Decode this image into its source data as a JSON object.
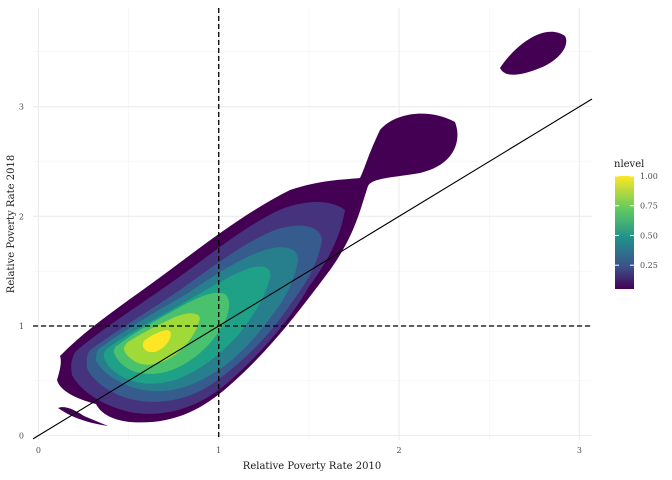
{
  "chart_data": {
    "type": "density contour",
    "xlabel": "Relative Poverty Rate 2010",
    "ylabel": "Relative Poverty Rate 2018",
    "xlim": [
      -0.03,
      3.07
    ],
    "ylim": [
      -0.04,
      3.9
    ],
    "x_ticks": [
      0,
      1,
      2,
      3
    ],
    "y_ticks": [
      0,
      1,
      2,
      3
    ],
    "grid": true,
    "reference_lines": {
      "vertical_dashed_x": 1,
      "horizontal_dashed_y": 1,
      "diagonal_identity": "y = x"
    },
    "legend": {
      "title": "nlevel",
      "position": "right",
      "colorscale": "viridis",
      "ticks": [
        {
          "value": 1.0,
          "label": "1.00"
        },
        {
          "value": 0.75,
          "label": "0.75"
        },
        {
          "value": 0.5,
          "label": "0.50"
        },
        {
          "value": 0.25,
          "label": "0.25"
        }
      ],
      "range": [
        0.05,
        1.0
      ]
    },
    "density_peak": {
      "x": 0.65,
      "y": 0.8
    }
  }
}
